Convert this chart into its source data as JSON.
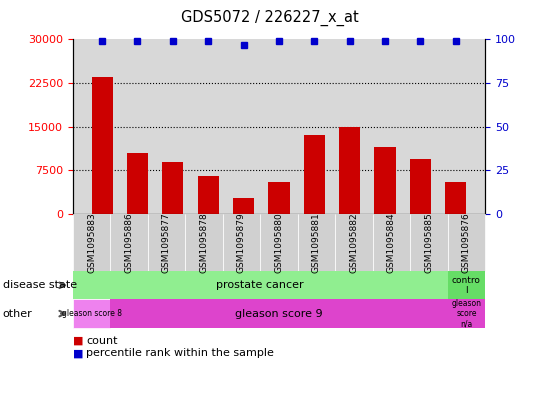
{
  "title": "GDS5072 / 226227_x_at",
  "samples": [
    "GSM1095883",
    "GSM1095886",
    "GSM1095877",
    "GSM1095878",
    "GSM1095879",
    "GSM1095880",
    "GSM1095881",
    "GSM1095882",
    "GSM1095884",
    "GSM1095885",
    "GSM1095876"
  ],
  "counts": [
    23500,
    10500,
    9000,
    6500,
    2800,
    5500,
    13500,
    15000,
    11500,
    9500,
    5500
  ],
  "percentile_ranks": [
    99,
    99,
    99,
    99,
    97,
    99,
    99,
    99,
    99,
    99,
    99
  ],
  "ylim_left": [
    0,
    30000
  ],
  "ylim_right": [
    0,
    100
  ],
  "yticks_left": [
    0,
    7500,
    15000,
    22500,
    30000
  ],
  "yticks_right": [
    0,
    25,
    50,
    75,
    100
  ],
  "bar_color": "#cc0000",
  "dot_color": "#0000cc",
  "background_color": "#ffffff",
  "plot_bg_color": "#d8d8d8",
  "tick_bg_color": "#d0d0d0",
  "bar_width": 0.6,
  "pc_color": "#90ee90",
  "ctrl_color": "#66dd66",
  "g8_color": "#ee82ee",
  "g9_color": "#dd44cc",
  "gna_color": "#dd44cc",
  "row1_label": "disease state",
  "row2_label": "other",
  "pc_label": "prostate cancer",
  "ctrl_label": "contro\nl",
  "g8_label": "gleason score 8",
  "g9_label": "gleason score 9",
  "gna_label": "gleason\nscore\nn/a",
  "legend1": "count",
  "legend2": "percentile rank within the sample"
}
